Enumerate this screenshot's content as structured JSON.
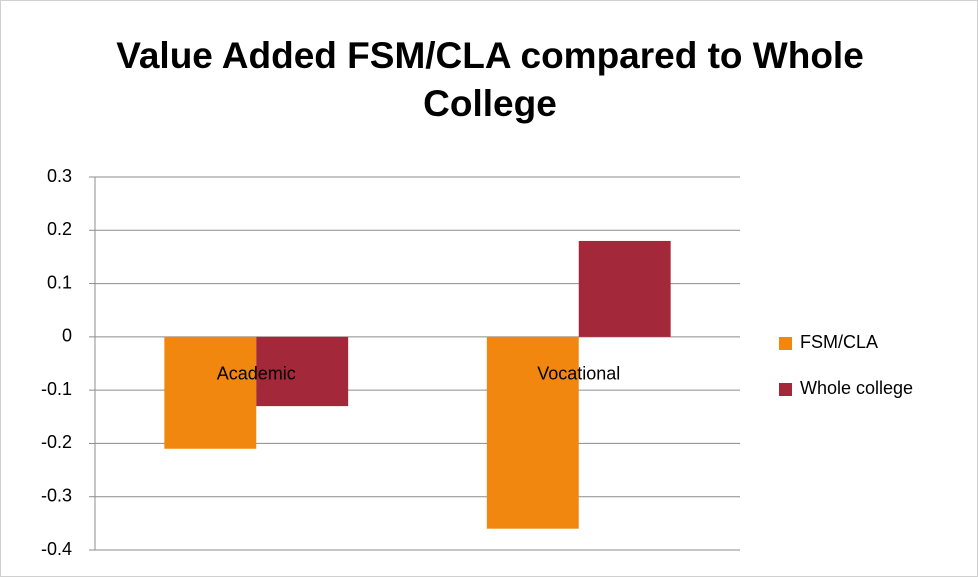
{
  "chart_data": {
    "type": "bar",
    "title": "Value Added FSM/CLA compared to Whole College",
    "categories": [
      "Academic",
      "Vocational"
    ],
    "series": [
      {
        "name": "FSM/CLA",
        "color": "#f2870f",
        "values": [
          -0.21,
          -0.36
        ]
      },
      {
        "name": "Whole college",
        "color": "#a3283a",
        "values": [
          -0.13,
          0.18
        ]
      }
    ],
    "ylim": [
      -0.4,
      0.3
    ],
    "yticks": [
      -0.4,
      -0.3,
      -0.2,
      -0.1,
      0,
      0.1,
      0.2,
      0.3
    ],
    "grid": true,
    "legend": "right"
  }
}
